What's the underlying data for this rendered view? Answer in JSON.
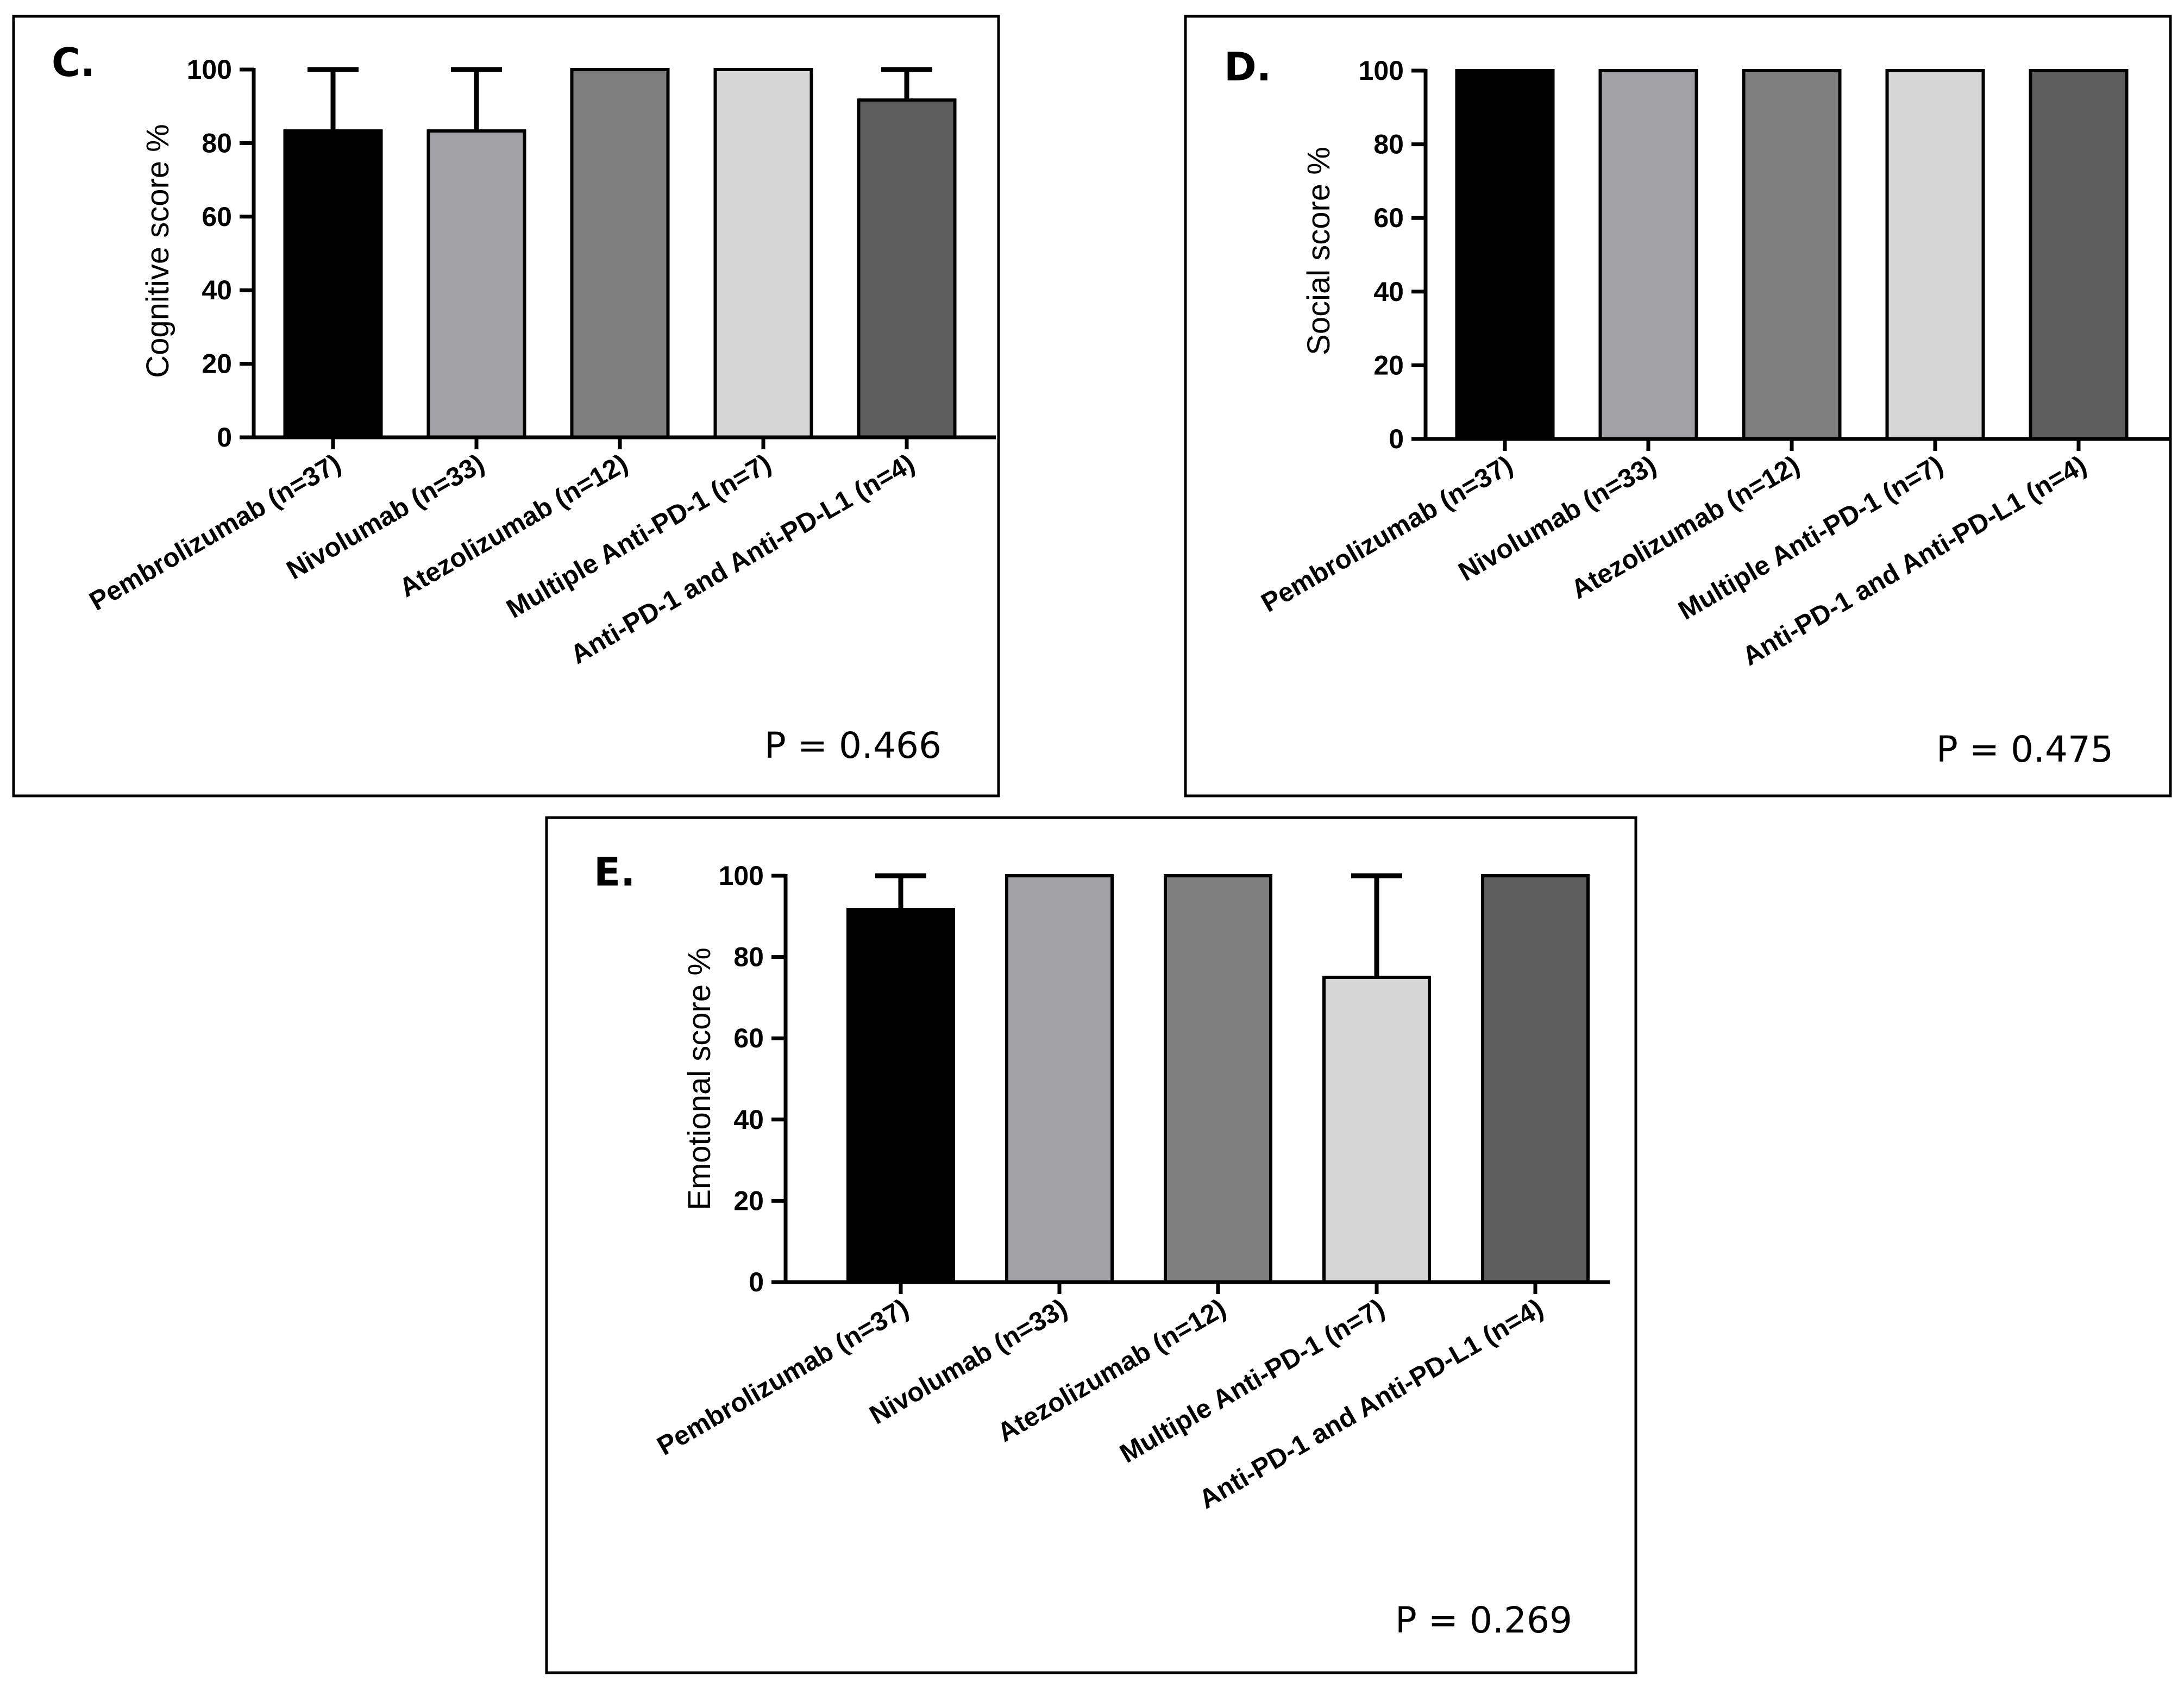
{
  "chart_data": [
    {
      "panel": "C.",
      "type": "bar",
      "ylabel": "Cognitive score %",
      "xlabel": "",
      "ylim": [
        0,
        100
      ],
      "yticks": [
        0,
        20,
        40,
        60,
        80,
        100
      ],
      "categories": [
        "Pembrolizumab (n=37)",
        "Nivolumab (n=33)",
        "Atezolizumab (n=12)",
        "Multiple Anti-PD-1 (n=7)",
        "Anti-PD-1 and Anti-PD-L1 (n=4)"
      ],
      "values": [
        83.3,
        83.3,
        100,
        100,
        91.7
      ],
      "error_upper": [
        100,
        100,
        100,
        100,
        100
      ],
      "annotation": "P = 0.466",
      "grid": false
    },
    {
      "panel": "D.",
      "type": "bar",
      "ylabel": "Social score %",
      "xlabel": "",
      "ylim": [
        0,
        100
      ],
      "yticks": [
        0,
        20,
        40,
        60,
        80,
        100
      ],
      "categories": [
        "Pembrolizumab (n=37)",
        "Nivolumab (n=33)",
        "Atezolizumab (n=12)",
        "Multiple Anti-PD-1 (n=7)",
        "Anti-PD-1 and Anti-PD-L1 (n=4)"
      ],
      "values": [
        100,
        100,
        100,
        100,
        100
      ],
      "error_upper": [
        100,
        100,
        100,
        100,
        100
      ],
      "annotation": "P = 0.475",
      "grid": false
    },
    {
      "panel": "E.",
      "type": "bar",
      "ylabel": "Emotional score %",
      "xlabel": "",
      "ylim": [
        0,
        100
      ],
      "yticks": [
        0,
        20,
        40,
        60,
        80,
        100
      ],
      "categories": [
        "Pembrolizumab (n=37)",
        "Nivolumab (n=33)",
        "Atezolizumab (n=12)",
        "Multiple Anti-PD-1 (n=7)",
        "Anti-PD-1 and Anti-PD-L1 (n=4)"
      ],
      "values": [
        91.7,
        100,
        100,
        75,
        100
      ],
      "error_upper": [
        100,
        100,
        100,
        100,
        100
      ],
      "annotation": "P = 0.269",
      "grid": false
    }
  ],
  "bar_colors": [
    "#000000",
    "#a2a1a6",
    "#7e7e7e",
    "#d6d6d6",
    "#5e5e5e"
  ]
}
